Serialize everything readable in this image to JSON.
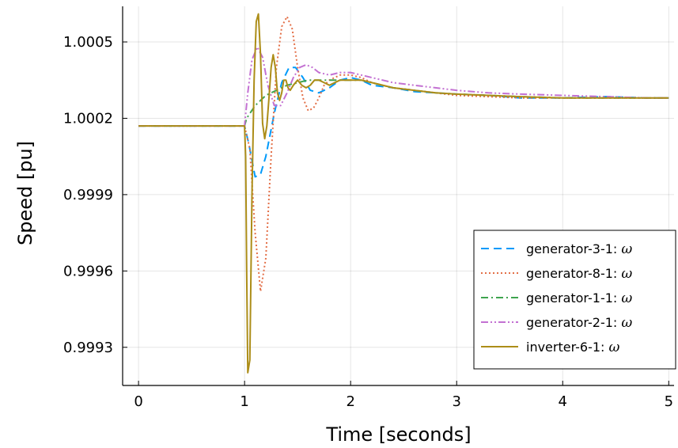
{
  "chart_data": {
    "type": "line",
    "xlabel": "Time [seconds]",
    "ylabel": "Speed [pu]",
    "xlim": [
      -0.15,
      5.05
    ],
    "ylim": [
      0.99915,
      1.00064
    ],
    "xticks": [
      0,
      1,
      2,
      3,
      4,
      5
    ],
    "xtick_labels": [
      "0",
      "1",
      "2",
      "3",
      "4",
      "5"
    ],
    "yticks": [
      0.9993,
      0.9996,
      0.9999,
      1.0002,
      1.0005
    ],
    "ytick_labels": [
      "0.9993",
      "0.9996",
      "0.9999",
      "1.0002",
      "1.0005"
    ],
    "grid": true,
    "legend_position": "bottom-right",
    "series": [
      {
        "name": "generator-3-1: ",
        "symbol": "ω",
        "color": "#009AFA",
        "dash": "dash",
        "x": [
          0,
          1.0,
          1.04,
          1.1,
          1.15,
          1.2,
          1.28,
          1.35,
          1.42,
          1.48,
          1.55,
          1.62,
          1.7,
          1.8,
          1.9,
          2.0,
          2.1,
          2.2,
          2.4,
          2.6,
          2.8,
          3.0,
          3.3,
          3.6,
          4.0,
          4.4,
          4.8,
          5.0
        ],
        "y": [
          1.00017,
          1.00017,
          1.0001,
          0.99997,
          0.99998,
          1.00005,
          1.00022,
          1.00034,
          1.0004,
          1.0004,
          1.00036,
          1.00031,
          1.0003,
          1.00032,
          1.00035,
          1.00036,
          1.00035,
          1.00033,
          1.00032,
          1.000305,
          1.0003,
          1.000295,
          1.00029,
          1.00028,
          1.00028,
          1.000285,
          1.00028,
          1.00028
        ]
      },
      {
        "name": "generator-8-1: ",
        "symbol": "ω",
        "color": "#E36F47",
        "dash": "dot",
        "x": [
          0,
          1.0,
          1.05,
          1.1,
          1.15,
          1.2,
          1.25,
          1.3,
          1.35,
          1.4,
          1.45,
          1.5,
          1.55,
          1.6,
          1.65,
          1.7,
          1.75,
          1.8,
          1.9,
          2.0,
          2.1,
          2.2,
          2.4,
          2.6,
          2.8,
          3.0,
          3.3,
          3.6,
          4.0,
          4.4,
          4.8,
          5.0
        ],
        "y": [
          1.00017,
          1.00017,
          1.00008,
          0.99975,
          0.99952,
          0.99965,
          1.00005,
          1.0004,
          1.00056,
          1.0006,
          1.00055,
          1.0004,
          1.00028,
          1.00023,
          1.00024,
          1.00028,
          1.00033,
          1.00035,
          1.00037,
          1.00037,
          1.00036,
          1.00034,
          1.00032,
          1.00031,
          1.0003,
          1.00029,
          1.000285,
          1.00028,
          1.00028,
          1.00028,
          1.00028,
          1.00028
        ]
      },
      {
        "name": "generator-1-1: ",
        "symbol": "ω",
        "color": "#3EA44E",
        "dash": "dashdot",
        "x": [
          0,
          1.0,
          1.02,
          1.1,
          1.2,
          1.3,
          1.4,
          1.5,
          1.6,
          1.7,
          1.8,
          1.9,
          2.0,
          2.1,
          2.2,
          2.4,
          2.6,
          2.8,
          3.0,
          3.3,
          3.6,
          4.0,
          4.4,
          4.8,
          5.0
        ],
        "y": [
          1.00017,
          1.00017,
          1.0002,
          1.00025,
          1.00029,
          1.00031,
          1.00033,
          1.00034,
          1.00035,
          1.00035,
          1.00035,
          1.00035,
          1.00035,
          1.00035,
          1.00034,
          1.00032,
          1.00031,
          1.0003,
          1.000295,
          1.00029,
          1.000285,
          1.00028,
          1.00028,
          1.00028,
          1.00028
        ]
      },
      {
        "name": "generator-2-1: ",
        "symbol": "ω",
        "color": "#C371D2",
        "dash": "dashdotdot",
        "x": [
          0,
          1.0,
          1.03,
          1.07,
          1.12,
          1.17,
          1.22,
          1.28,
          1.34,
          1.4,
          1.46,
          1.52,
          1.58,
          1.64,
          1.7,
          1.8,
          1.9,
          2.0,
          2.1,
          2.2,
          2.4,
          2.6,
          2.8,
          3.0,
          3.3,
          3.6,
          4.0,
          4.4,
          4.8,
          5.0
        ],
        "y": [
          1.00017,
          1.00017,
          1.0003,
          1.00043,
          1.00048,
          1.00044,
          1.00033,
          1.00025,
          1.00025,
          1.0003,
          1.00036,
          1.0004,
          1.00041,
          1.0004,
          1.00038,
          1.00037,
          1.00038,
          1.00038,
          1.00037,
          1.00036,
          1.00034,
          1.00033,
          1.00032,
          1.00031,
          1.0003,
          1.000295,
          1.00029,
          1.000285,
          1.00028,
          1.00028
        ]
      },
      {
        "name": "inverter-6-1: ",
        "symbol": "ω",
        "color": "#AC8D18",
        "dash": "solid",
        "x": [
          0,
          1.0,
          1.01,
          1.02,
          1.03,
          1.05,
          1.07,
          1.09,
          1.11,
          1.13,
          1.15,
          1.17,
          1.19,
          1.21,
          1.23,
          1.25,
          1.27,
          1.29,
          1.31,
          1.33,
          1.35,
          1.37,
          1.39,
          1.41,
          1.43,
          1.46,
          1.5,
          1.54,
          1.58,
          1.62,
          1.66,
          1.7,
          1.75,
          1.8,
          1.9,
          2.0,
          2.1,
          2.2,
          2.4,
          2.6,
          2.8,
          3.0,
          3.3,
          3.6,
          4.0,
          4.4,
          4.8,
          5.0
        ],
        "y": [
          1.00017,
          1.00017,
          1.00005,
          0.9996,
          0.9992,
          0.99925,
          0.9999,
          1.00035,
          1.00058,
          1.00061,
          1.00045,
          1.00018,
          1.00012,
          1.00017,
          1.00028,
          1.0004,
          1.00045,
          1.0004,
          1.0003,
          1.00027,
          1.0003,
          1.00035,
          1.00035,
          1.00032,
          1.00031,
          1.00033,
          1.00035,
          1.00033,
          1.00032,
          1.00033,
          1.00035,
          1.00035,
          1.00034,
          1.00033,
          1.00035,
          1.00035,
          1.00035,
          1.00034,
          1.00032,
          1.00031,
          1.0003,
          1.000295,
          1.00029,
          1.000285,
          1.00028,
          1.00028,
          1.00028,
          1.00028
        ]
      }
    ]
  }
}
